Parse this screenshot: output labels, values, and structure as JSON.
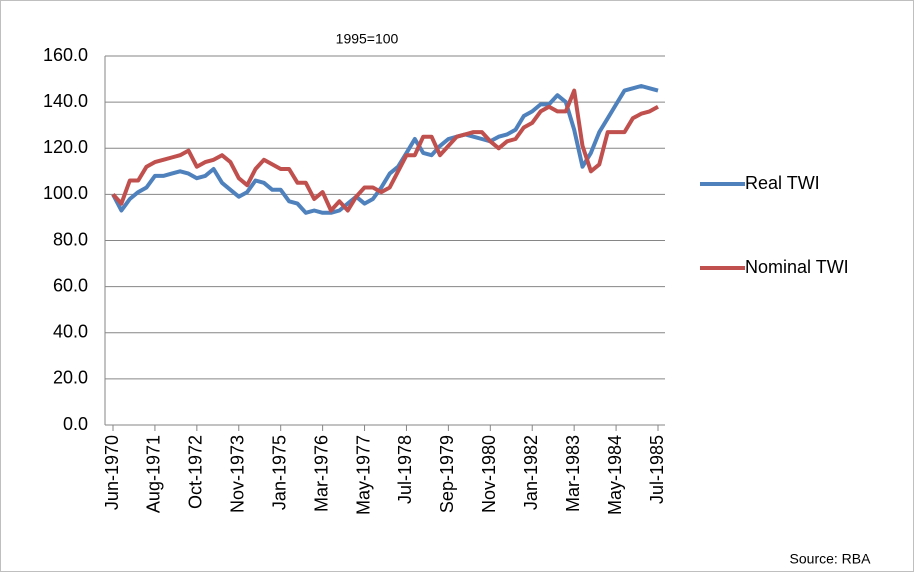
{
  "chart_data": {
    "type": "line",
    "title": "1995=100",
    "source": "Source: RBA",
    "categories": [
      "Jun-1970",
      null,
      null,
      null,
      null,
      "Aug-1971",
      null,
      null,
      null,
      null,
      "Oct-1972",
      null,
      null,
      null,
      null,
      "Nov-1973",
      null,
      null,
      null,
      null,
      "Jan-1975",
      null,
      null,
      null,
      null,
      "Mar-1976",
      null,
      null,
      null,
      null,
      "May-1977",
      null,
      null,
      null,
      null,
      "Jul-1978",
      null,
      null,
      null,
      null,
      "Sep-1979",
      null,
      null,
      null,
      null,
      "Nov-1980",
      null,
      null,
      null,
      null,
      "Jan-1982",
      null,
      null,
      null,
      null,
      "Mar-1983",
      null,
      null,
      null,
      null,
      "May-1984",
      null,
      null,
      null,
      null,
      "Jul-1985"
    ],
    "series": [
      {
        "name": "Real TWI",
        "color": "#4f81bd",
        "values": [
          100,
          93,
          98,
          101,
          103,
          108,
          108,
          109,
          110,
          109,
          107,
          108,
          111,
          105,
          102,
          99,
          101,
          106,
          105,
          102,
          102,
          97,
          96,
          92,
          93,
          92,
          92,
          93,
          96,
          99,
          96,
          98,
          103,
          109,
          112,
          118,
          124,
          118,
          117,
          121,
          124,
          125,
          126,
          125,
          124,
          123,
          125,
          126,
          128,
          134,
          136,
          139,
          139,
          143,
          140,
          128,
          112,
          118,
          127,
          133,
          139,
          145,
          146,
          147,
          146,
          145
        ]
      },
      {
        "name": "Nominal TWI",
        "color": "#c0504d",
        "values": [
          100,
          96,
          106,
          106,
          112,
          114,
          115,
          116,
          117,
          119,
          112,
          114,
          115,
          117,
          114,
          107,
          104,
          111,
          115,
          113,
          111,
          111,
          105,
          105,
          98,
          101,
          93,
          97,
          93,
          99,
          103,
          103,
          101,
          103,
          110,
          117,
          117,
          125,
          125,
          117,
          121,
          125,
          126,
          127,
          127,
          123,
          120,
          123,
          124,
          129,
          131,
          136,
          138,
          136,
          136,
          145,
          121,
          110,
          113,
          127,
          127,
          127,
          133,
          135,
          136,
          138
        ]
      }
    ],
    "ylim": [
      0,
      160
    ],
    "yticks": [
      {
        "value": 0,
        "label": "0.0"
      },
      {
        "value": 20,
        "label": "20.0"
      },
      {
        "value": 40,
        "label": "40.0"
      },
      {
        "value": 60,
        "label": "60.0"
      },
      {
        "value": 80,
        "label": "80.0"
      },
      {
        "value": 100,
        "label": "100.0"
      },
      {
        "value": 120,
        "label": "120.0"
      },
      {
        "value": 140,
        "label": "140.0"
      },
      {
        "value": 160,
        "label": "160.0"
      }
    ],
    "grid": true,
    "legend": "right"
  }
}
